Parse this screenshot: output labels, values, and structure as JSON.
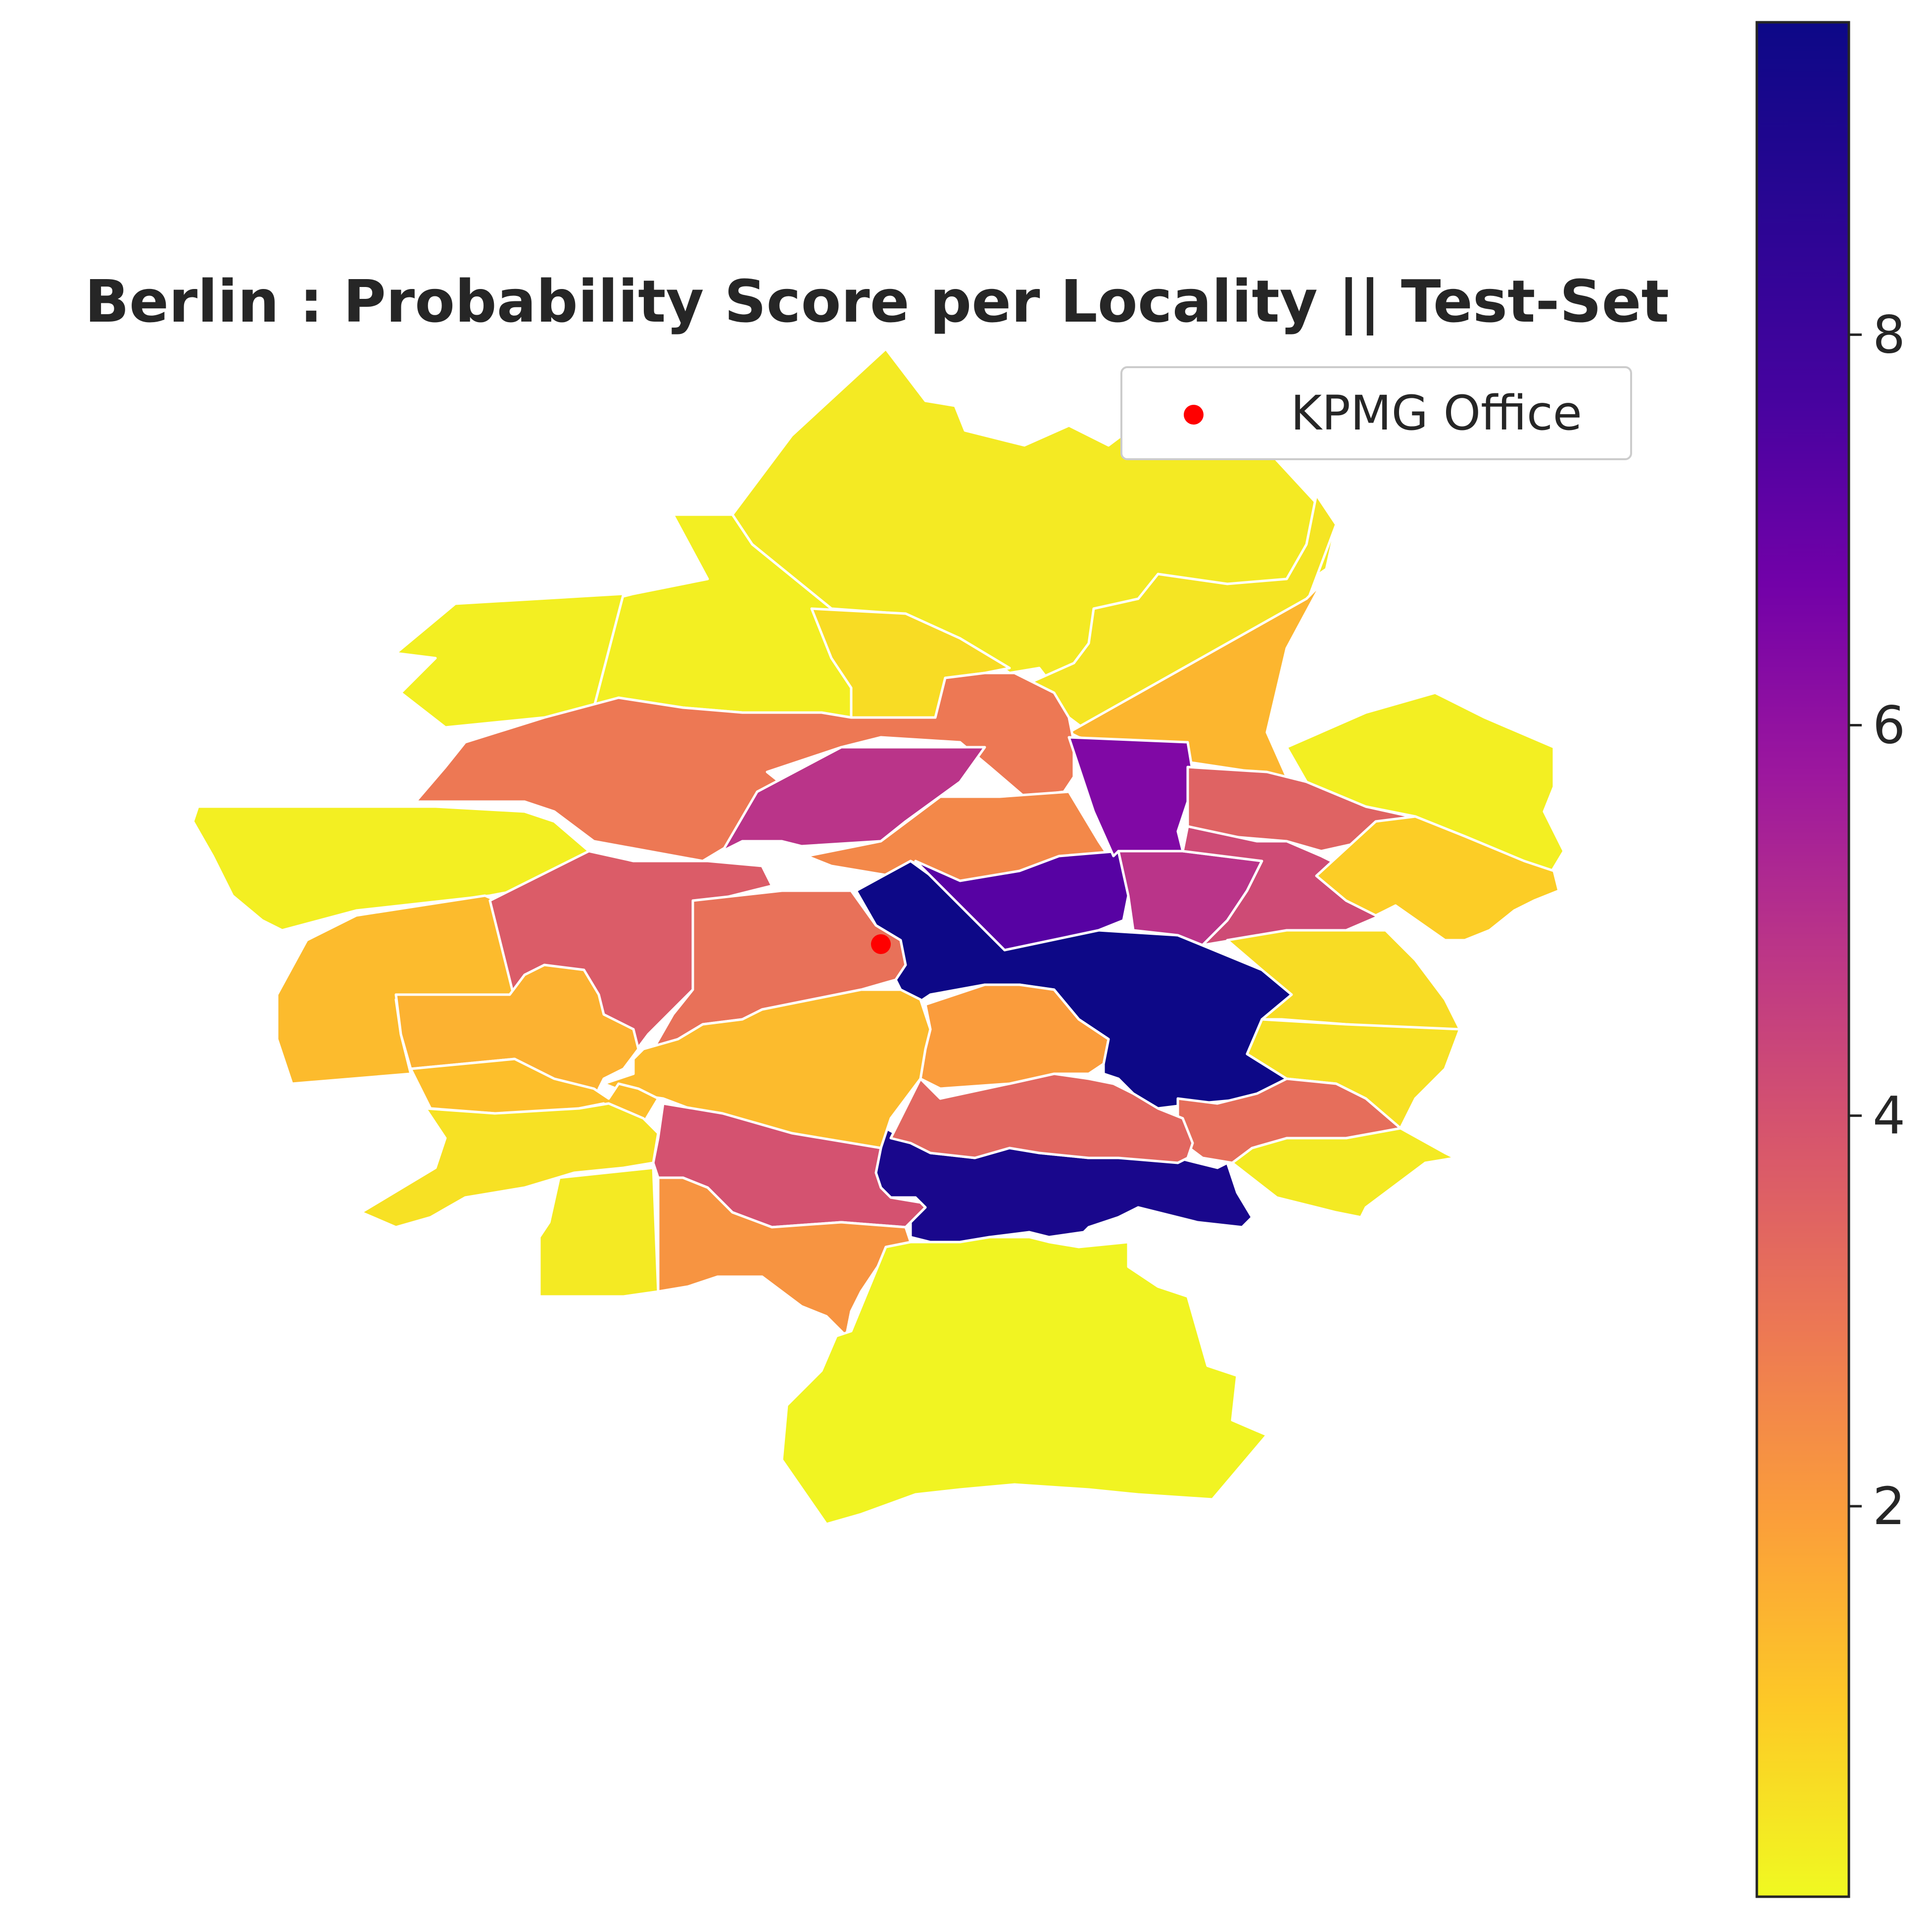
{
  "title": "Berlin : Probability Score per Locality || Test-Set",
  "legend": {
    "label": "KPMG Office",
    "marker_color": "#ff0000",
    "placement": "upper-right"
  },
  "colorbar": {
    "colormap": "plasma_r",
    "range": [
      0,
      9.6
    ],
    "ticks": [
      {
        "value": 2,
        "label": "2"
      },
      {
        "value": 4,
        "label": "4"
      },
      {
        "value": 6,
        "label": "6"
      },
      {
        "value": 8,
        "label": "8"
      }
    ]
  },
  "office_marker": {
    "color": "#ff0000"
  },
  "localities": [
    {
      "id": "north-tip",
      "score": 0.3
    },
    {
      "id": "north-central",
      "score": 0.2
    },
    {
      "id": "north-west-1",
      "score": 0.2
    },
    {
      "id": "north-east-arm",
      "score": 0.4
    },
    {
      "id": "north-mid-pocket",
      "score": 0.6
    },
    {
      "id": "north-east-orange",
      "score": 1.4
    },
    {
      "id": "north-band",
      "score": 2.9
    },
    {
      "id": "north-magenta",
      "score": 4.9
    },
    {
      "id": "center-north-orange",
      "score": 2.5
    },
    {
      "id": "west-big",
      "score": 0.2
    },
    {
      "id": "west-strip",
      "score": 1.3
    },
    {
      "id": "center-west-red",
      "score": 3.7
    },
    {
      "id": "center-orange",
      "score": 3.1
    },
    {
      "id": "center-navy",
      "score": 9.6
    },
    {
      "id": "center-purple",
      "score": 7.3
    },
    {
      "id": "purple-2",
      "score": 6.4
    },
    {
      "id": "east-magenta",
      "score": 4.9
    },
    {
      "id": "east-red",
      "score": 3.5
    },
    {
      "id": "east-magenta-2",
      "score": 4.2
    },
    {
      "id": "far-east-green",
      "score": 0.2
    },
    {
      "id": "far-east-gold",
      "score": 0.9
    },
    {
      "id": "east-gold-2",
      "score": 0.6
    },
    {
      "id": "south-east-gold",
      "score": 0.5
    },
    {
      "id": "south-east-pale",
      "score": 0.3
    },
    {
      "id": "south-east-red",
      "score": 3.2
    },
    {
      "id": "south-navy",
      "score": 9.2
    },
    {
      "id": "south-mid-red",
      "score": 3.4
    },
    {
      "id": "center-south-orange",
      "score": 2.0
    },
    {
      "id": "center-gold",
      "score": 1.3
    },
    {
      "id": "sw-red",
      "score": 4.0
    },
    {
      "id": "sw-orange",
      "score": 2.2
    },
    {
      "id": "west-orange-1",
      "score": 1.5
    },
    {
      "id": "west-orange-2",
      "score": 1.2
    },
    {
      "id": "west-gold",
      "score": 0.5
    },
    {
      "id": "sw-yellow",
      "score": 0.3
    },
    {
      "id": "south-big",
      "score": 0.1
    }
  ]
}
